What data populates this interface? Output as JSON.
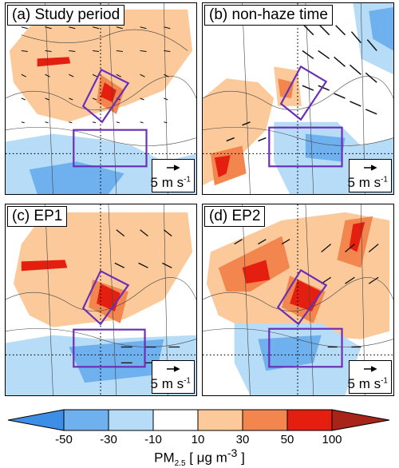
{
  "panels": [
    {
      "id": "a",
      "title": "(a) Study period"
    },
    {
      "id": "b",
      "title": "(b) non-haze time"
    },
    {
      "id": "c",
      "title": "(c) EP1"
    },
    {
      "id": "d",
      "title": "(d) EP2"
    }
  ],
  "scale": {
    "value": "5",
    "unit_main": "m s",
    "unit_exp": "-1"
  },
  "colorbar": {
    "labels": [
      "-50",
      "-30",
      "-10",
      "10",
      "30",
      "50",
      "100"
    ],
    "colors": [
      "#3d8ee6",
      "#6fb0ee",
      "#b6dcf7",
      "#ffffff",
      "#fbc99a",
      "#f2864e",
      "#e51f10",
      "#a82418"
    ]
  },
  "unit": {
    "prefix": "PM",
    "sub": "2.5",
    "suffix": " [ μg m",
    "exp": "-3",
    "close": " ]"
  }
}
